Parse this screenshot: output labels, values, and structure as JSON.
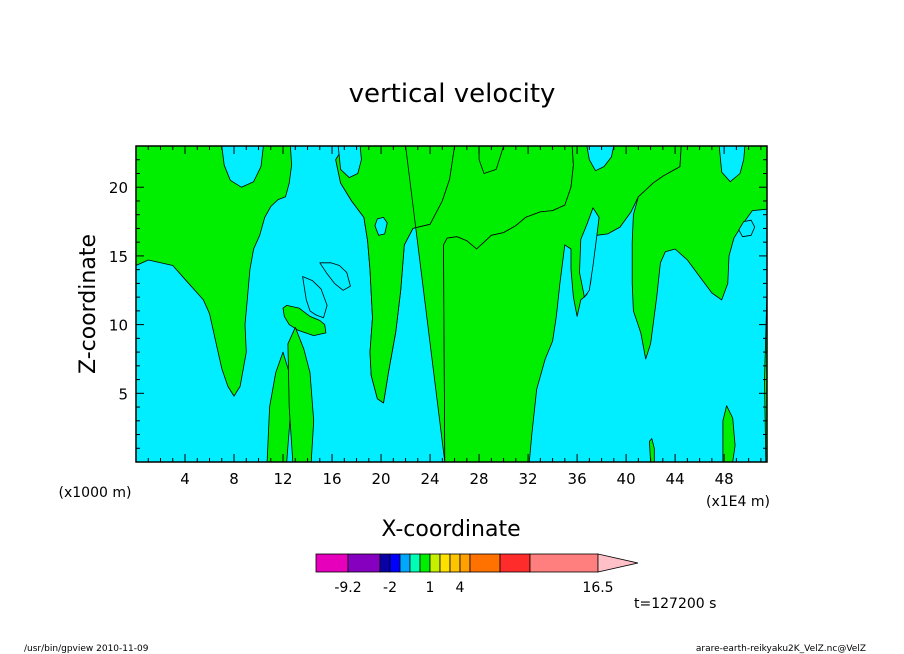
{
  "chart_data": {
    "type": "heatmap",
    "title": "vertical velocity",
    "xlabel": "X-coordinate",
    "ylabel": "Z-coordinate",
    "x_unit_left": "(x1000 m)",
    "x_unit_right": "(x1E4 m)",
    "xlim": [
      0,
      51.5
    ],
    "ylim": [
      0,
      23
    ],
    "x_ticks": [
      4,
      8,
      12,
      16,
      20,
      24,
      28,
      32,
      36,
      40,
      44,
      48
    ],
    "y_ticks": [
      5,
      10,
      15,
      20
    ],
    "colors": {
      "positive": "#00ee00",
      "negative": "#00eeff"
    },
    "positive_regions": [
      [
        [
          0,
          0
        ],
        [
          0,
          14.3
        ],
        [
          1,
          14.7
        ],
        [
          3,
          14.3
        ],
        [
          4,
          13.3
        ],
        [
          5.5,
          11.8
        ],
        [
          6,
          10.8
        ],
        [
          6.5,
          8.8
        ],
        [
          7,
          6.8
        ],
        [
          7.5,
          5.5
        ],
        [
          8,
          4.8
        ],
        [
          8.5,
          5.5
        ],
        [
          9,
          8
        ],
        [
          8.9,
          10
        ],
        [
          9.1,
          12
        ],
        [
          9.3,
          14
        ],
        [
          9.6,
          15.5
        ],
        [
          10.1,
          16.5
        ],
        [
          10.5,
          17.8
        ],
        [
          11,
          18.6
        ],
        [
          11.6,
          19.1
        ],
        [
          12.2,
          19.3
        ],
        [
          12.5,
          20.3
        ],
        [
          12.7,
          21.6
        ],
        [
          12.6,
          23
        ],
        [
          17,
          23
        ],
        [
          16.3,
          22
        ],
        [
          16.7,
          20.3
        ],
        [
          17.6,
          19
        ],
        [
          18.6,
          17.8
        ],
        [
          18.9,
          16.1
        ],
        [
          19.1,
          14
        ],
        [
          19.2,
          12.3
        ],
        [
          19.3,
          10.5
        ],
        [
          19.1,
          8
        ],
        [
          19.2,
          6.3
        ],
        [
          19.7,
          4.6
        ],
        [
          20.2,
          4.3
        ],
        [
          20.6,
          6.5
        ],
        [
          21.2,
          9.5
        ],
        [
          21.6,
          12.5
        ],
        [
          21.9,
          15.8
        ],
        [
          22.6,
          17
        ],
        [
          24,
          17.3
        ],
        [
          25,
          19
        ],
        [
          25.6,
          20.6
        ],
        [
          26,
          23
        ],
        [
          0,
          23
        ]
      ],
      [
        [
          10.7,
          0
        ],
        [
          10.9,
          4
        ],
        [
          11.4,
          6.5
        ],
        [
          12,
          8
        ],
        [
          12.5,
          6.5
        ],
        [
          12.6,
          3.5
        ],
        [
          12.3,
          0
        ]
      ],
      [
        [
          12,
          11.2
        ],
        [
          12.3,
          11.4
        ],
        [
          13.3,
          11.2
        ],
        [
          14.2,
          10.6
        ],
        [
          15,
          10.3
        ],
        [
          15.4,
          10
        ],
        [
          15.5,
          9.4
        ],
        [
          14.5,
          9.2
        ],
        [
          13.2,
          9.6
        ],
        [
          12.5,
          10
        ],
        [
          12.1,
          10.6
        ]
      ],
      [
        [
          14.3,
          0
        ],
        [
          14.5,
          3
        ],
        [
          14.2,
          6.5
        ],
        [
          13.7,
          8.2
        ],
        [
          13,
          9.8
        ],
        [
          12.4,
          8.6
        ],
        [
          12.5,
          4
        ],
        [
          12.8,
          0
        ]
      ],
      [
        [
          25.2,
          0
        ],
        [
          25.1,
          15.8
        ],
        [
          25.4,
          16.3
        ],
        [
          26.2,
          16.4
        ],
        [
          27,
          16.1
        ],
        [
          27.8,
          15.5
        ],
        [
          28.4,
          16
        ],
        [
          29,
          16.5
        ],
        [
          30,
          16.7
        ],
        [
          31,
          17.2
        ],
        [
          31.8,
          17.8
        ],
        [
          33,
          18.2
        ],
        [
          34,
          18.3
        ],
        [
          35,
          18.7
        ],
        [
          35.5,
          20
        ],
        [
          35.7,
          21.6
        ],
        [
          35.6,
          23
        ],
        [
          28,
          23
        ],
        [
          28,
          22
        ],
        [
          28.4,
          21
        ],
        [
          29.4,
          21.3
        ],
        [
          30,
          23
        ],
        [
          26,
          23
        ],
        [
          25.6,
          20.6
        ],
        [
          25,
          19
        ],
        [
          24,
          17.3
        ],
        [
          22.6,
          17
        ],
        [
          21.9,
          15.8
        ],
        [
          21.6,
          12.5
        ],
        [
          21.2,
          9.5
        ],
        [
          20.6,
          6.5
        ],
        [
          20.2,
          4.3
        ],
        [
          19.7,
          4.6
        ],
        [
          19.2,
          6.3
        ],
        [
          19.1,
          8
        ],
        [
          19.3,
          10.5
        ],
        [
          19.2,
          12.3
        ],
        [
          19.1,
          14
        ],
        [
          18.9,
          16.1
        ],
        [
          18.6,
          17.8
        ],
        [
          17.6,
          19
        ],
        [
          16.7,
          20.3
        ],
        [
          16.3,
          22
        ],
        [
          17,
          23
        ],
        [
          22,
          23
        ],
        [
          22,
          23
        ],
        [
          22,
          23
        ]
      ],
      [
        [
          25.2,
          0
        ],
        [
          25.1,
          15.8
        ],
        [
          25.4,
          16.3
        ],
        [
          26.2,
          16.4
        ],
        [
          27,
          16.1
        ],
        [
          27.8,
          15.5
        ],
        [
          28.4,
          16
        ],
        [
          29,
          16.5
        ],
        [
          30,
          16.7
        ],
        [
          31,
          17.2
        ],
        [
          31.8,
          17.8
        ],
        [
          33,
          18.2
        ],
        [
          34,
          18.3
        ],
        [
          35,
          18.7
        ],
        [
          35.5,
          20
        ],
        [
          35.7,
          21.6
        ],
        [
          35.6,
          23
        ],
        [
          44.5,
          23
        ],
        [
          44.4,
          21.5
        ],
        [
          43,
          20.8
        ],
        [
          42.2,
          20.3
        ],
        [
          41.6,
          19.8
        ],
        [
          41,
          19.3
        ],
        [
          40.4,
          18.2
        ],
        [
          39.5,
          17.1
        ],
        [
          38.5,
          16.6
        ],
        [
          37.6,
          16.5
        ],
        [
          37.3,
          15.4
        ],
        [
          37.1,
          13
        ],
        [
          36.8,
          12.2
        ],
        [
          36.3,
          11.8
        ],
        [
          36,
          10.6
        ],
        [
          35.7,
          12
        ],
        [
          35.5,
          14
        ],
        [
          35.5,
          15.5
        ],
        [
          35,
          15.8
        ],
        [
          34.6,
          13
        ],
        [
          34.3,
          10.6
        ],
        [
          34,
          8.8
        ],
        [
          33.4,
          7.5
        ],
        [
          32.7,
          5.3
        ],
        [
          32.3,
          2
        ],
        [
          32.1,
          0
        ]
      ],
      [
        [
          40.5,
          13
        ],
        [
          40.6,
          11
        ],
        [
          41.2,
          9.4
        ],
        [
          41.6,
          7.5
        ],
        [
          42,
          8.6
        ],
        [
          42.5,
          12
        ],
        [
          42.8,
          14.5
        ],
        [
          43.2,
          15.3
        ],
        [
          44,
          15.5
        ],
        [
          45,
          14.7
        ],
        [
          46,
          13.5
        ],
        [
          47,
          12.3
        ],
        [
          47.8,
          11.8
        ],
        [
          48.3,
          13
        ],
        [
          48.4,
          15
        ],
        [
          48.8,
          16.3
        ],
        [
          49.5,
          17.3
        ],
        [
          50.3,
          18.3
        ],
        [
          51.5,
          18.4
        ],
        [
          51.5,
          23
        ],
        [
          44.5,
          23
        ],
        [
          44.4,
          21.5
        ],
        [
          43,
          20.8
        ],
        [
          42.2,
          20.3
        ],
        [
          41.6,
          19.8
        ],
        [
          41,
          19.3
        ],
        [
          40.6,
          18
        ],
        [
          40.5,
          16
        ]
      ],
      [
        [
          47.9,
          0
        ],
        [
          47.9,
          3
        ],
        [
          48.2,
          4.1
        ],
        [
          48.7,
          3.2
        ],
        [
          48.9,
          1.2
        ],
        [
          48.7,
          0
        ]
      ],
      [
        [
          42,
          0
        ],
        [
          41.9,
          1.5
        ],
        [
          42.1,
          1.7
        ],
        [
          42.3,
          1
        ],
        [
          42.3,
          0
        ]
      ],
      [
        [
          51.4,
          0
        ],
        [
          51.3,
          6
        ],
        [
          51.5,
          12.5
        ],
        [
          51.5,
          0
        ]
      ]
    ],
    "negative_regions": [
      [
        [
          7,
          23
        ],
        [
          7.2,
          21.6
        ],
        [
          7.7,
          20.5
        ],
        [
          8.6,
          20
        ],
        [
          9.6,
          20.4
        ],
        [
          10.2,
          21.5
        ],
        [
          10.4,
          23
        ]
      ],
      [
        [
          16.5,
          23
        ],
        [
          16.7,
          21.3
        ],
        [
          17.4,
          20.7
        ],
        [
          18.1,
          21
        ],
        [
          18.4,
          22
        ],
        [
          18.3,
          23
        ]
      ],
      [
        [
          19.5,
          17.2
        ],
        [
          19.8,
          16.5
        ],
        [
          20.3,
          16.6
        ],
        [
          20.5,
          17.4
        ],
        [
          20.2,
          17.8
        ],
        [
          19.7,
          17.7
        ]
      ],
      [
        [
          15,
          14.5
        ],
        [
          15.6,
          13.7
        ],
        [
          16.2,
          13
        ],
        [
          16.9,
          12.5
        ],
        [
          17.5,
          12.8
        ],
        [
          17.2,
          13.8
        ],
        [
          16.6,
          14.3
        ],
        [
          15.9,
          14.5
        ]
      ],
      [
        [
          13.6,
          13.5
        ],
        [
          13.9,
          11.8
        ],
        [
          14.2,
          11
        ],
        [
          14.7,
          10.7
        ],
        [
          15.3,
          10.5
        ],
        [
          15.6,
          11.4
        ],
        [
          15.1,
          12.6
        ],
        [
          14.4,
          13.2
        ]
      ],
      [
        [
          36.3,
          16.2
        ],
        [
          36.8,
          17.3
        ],
        [
          37.3,
          18.5
        ],
        [
          37.8,
          17.8
        ],
        [
          37.6,
          16.4
        ],
        [
          37.3,
          14.3
        ],
        [
          37,
          12.5
        ],
        [
          36.6,
          12
        ],
        [
          36.2,
          13.8
        ]
      ],
      [
        [
          36.8,
          23
        ],
        [
          37,
          22
        ],
        [
          37.5,
          21.2
        ],
        [
          38.2,
          21.5
        ],
        [
          38.8,
          22.2
        ],
        [
          39,
          23
        ]
      ],
      [
        [
          47.6,
          23
        ],
        [
          47.8,
          21.1
        ],
        [
          48.5,
          20.4
        ],
        [
          49.3,
          21
        ],
        [
          49.6,
          22
        ],
        [
          49.7,
          23
        ]
      ],
      [
        [
          49.2,
          16.9
        ],
        [
          49.5,
          16.4
        ],
        [
          50.2,
          16.5
        ],
        [
          50.5,
          17.1
        ],
        [
          50.2,
          17.6
        ],
        [
          49.6,
          17.5
        ]
      ]
    ],
    "colorbar": {
      "colors": [
        "#e600bc",
        "#8500bf",
        "#0a00a8",
        "#0000ff",
        "#00a7ff",
        "#00ffb5",
        "#00ee00",
        "#c5f000",
        "#ffe100",
        "#ffc400",
        "#ffa000",
        "#ff7200",
        "#ff2c2c",
        "#ff7f7f"
      ],
      "widths": [
        32,
        32,
        10,
        10,
        10,
        10,
        10,
        10,
        10,
        10,
        10,
        30,
        30,
        68
      ],
      "extend_color": "#ffc0c8",
      "tick_labels": [
        "-9.2",
        "-2",
        "1",
        "4",
        "16.5"
      ],
      "tick_boundaries": [
        1,
        3,
        7,
        10,
        14
      ]
    }
  },
  "annotations": {
    "time": "t=127200 s",
    "footer_left": "/usr/bin/gpview   2010-11-09",
    "footer_right": "arare-earth-reikyaku2K_VelZ.nc@VelZ"
  }
}
